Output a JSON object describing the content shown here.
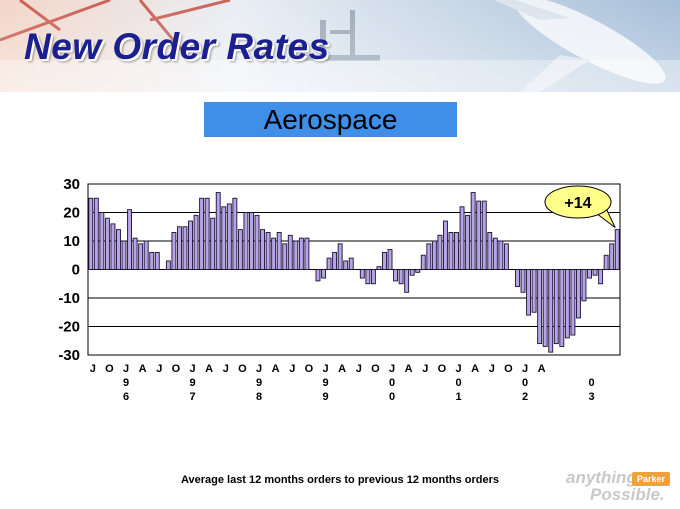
{
  "header": {
    "title": "New Order Rates"
  },
  "subtitle": "Aerospace",
  "footnote": "Average last 12 months orders to previous 12 months orders",
  "logo": {
    "line1": "anything",
    "line2": "Possible.",
    "brand": "Parker"
  },
  "colors": {
    "title": "#1b1f8f",
    "subtitle_box": "#3f8fe8",
    "bar_fill": "#b7a3ea",
    "bar_stroke": "#1a1330",
    "callout": "#ffff8a"
  },
  "chart_data": {
    "type": "bar",
    "title": "",
    "xlabel": "",
    "ylabel": "",
    "ylim": [
      -30,
      30
    ],
    "yticks": [
      30,
      20,
      10,
      0,
      -10,
      -20,
      -30
    ],
    "grid": true,
    "annotation": {
      "text": "+14",
      "target": "last"
    },
    "x_month_labels": [
      "J",
      "O",
      "J",
      "A",
      "J",
      "O",
      "J",
      "A",
      "J",
      "O",
      "J",
      "A",
      "J",
      "O",
      "J",
      "A",
      "J",
      "O",
      "J",
      "A",
      "J",
      "O",
      "J",
      "A",
      "J",
      "O",
      "J",
      "A"
    ],
    "x_year_labels": [
      {
        "after": "J",
        "index": 2,
        "digits": [
          "9",
          "6"
        ]
      },
      {
        "index": 6,
        "digits": [
          "9",
          "7"
        ]
      },
      {
        "index": 10,
        "digits": [
          "9",
          "8"
        ]
      },
      {
        "index": 14,
        "digits": [
          "9",
          "9"
        ]
      },
      {
        "index": 18,
        "digits": [
          "0",
          "0"
        ]
      },
      {
        "index": 22,
        "digits": [
          "0",
          "1"
        ]
      },
      {
        "index": 26,
        "digits": [
          "0",
          "2"
        ]
      },
      {
        "index": 30,
        "digits": [
          "0",
          "3"
        ]
      }
    ],
    "values": [
      25,
      25,
      20,
      18,
      16,
      14,
      10,
      21,
      11,
      9,
      10,
      6,
      6,
      0,
      3,
      13,
      15,
      15,
      17,
      19,
      25,
      25,
      18,
      27,
      22,
      23,
      25,
      14,
      20,
      20,
      19,
      14,
      13,
      11,
      13,
      9,
      12,
      10,
      11,
      11,
      0,
      -4,
      -3,
      4,
      6,
      9,
      3,
      4,
      0,
      -3,
      -5,
      -5,
      1,
      6,
      7,
      -4,
      -5,
      -8,
      -2,
      -1,
      5,
      9,
      10,
      12,
      17,
      13,
      13,
      22,
      19,
      27,
      24,
      24,
      13,
      11,
      10,
      9,
      0,
      -6,
      -8,
      -16,
      -15,
      -26,
      -27,
      -29,
      -26,
      -27,
      -24,
      -23,
      -17,
      -11,
      -3,
      -2,
      -5,
      5,
      9,
      14
    ]
  }
}
